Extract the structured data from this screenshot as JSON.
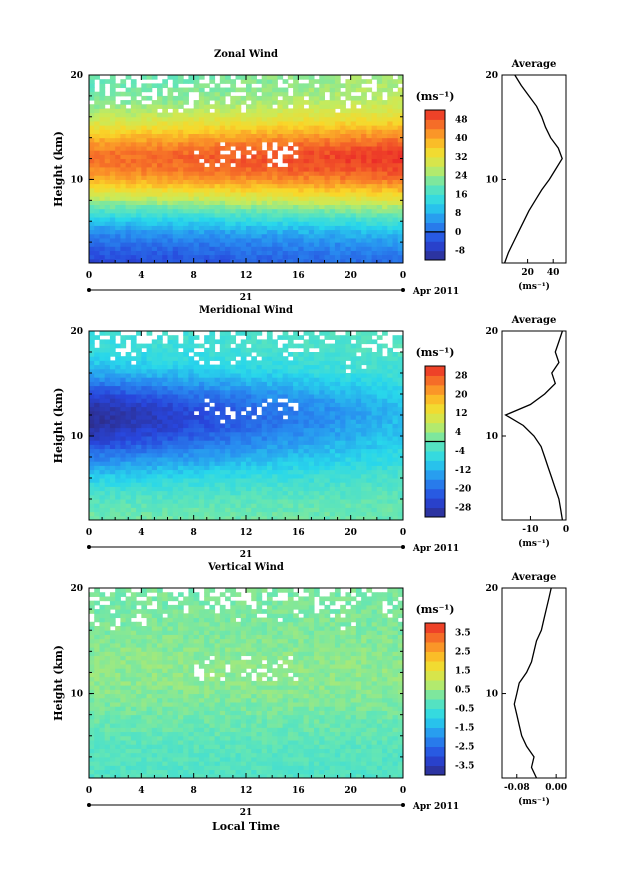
{
  "chart_data": [
    {
      "type": "heatmap",
      "title": "Zonal Wind",
      "ylabel": "Height (km)",
      "xlabel": "",
      "x_ticks": [
        "0",
        "4",
        "8",
        "12",
        "16",
        "20",
        "0"
      ],
      "y_ticks": [
        "10",
        "20"
      ],
      "xlim": [
        0,
        24
      ],
      "ylim": [
        2,
        20
      ],
      "day_label": "21",
      "date_label": "Apr 2011",
      "colorbar": {
        "unit_label": "(ms⁻¹)",
        "ticks": [
          "48",
          "40",
          "32",
          "24",
          "16",
          "8",
          "0",
          "-8"
        ],
        "min": -12,
        "max": 52,
        "zero_line": 0
      },
      "field": {
        "core_height_km": 12,
        "core_peak": 48,
        "surface_value": -4,
        "top_value": 22
      },
      "average_profile": {
        "title": "Average",
        "x_ticks": [
          "20",
          "40"
        ],
        "x_unit": "(ms⁻¹)",
        "xlim": [
          0,
          50
        ],
        "height_km": [
          2,
          3,
          4,
          5,
          6,
          7,
          8,
          9,
          10,
          11,
          12,
          13,
          14,
          15,
          16,
          17,
          18,
          19,
          20
        ],
        "values": [
          2,
          5,
          9,
          13,
          17,
          21,
          26,
          31,
          37,
          42,
          47,
          44,
          38,
          34,
          31,
          27,
          21,
          15,
          10
        ]
      }
    },
    {
      "type": "heatmap",
      "title": "Meridional Wind",
      "ylabel": "Height (km)",
      "xlabel": "",
      "x_ticks": [
        "0",
        "4",
        "8",
        "12",
        "16",
        "20",
        "0"
      ],
      "y_ticks": [
        "10",
        "20"
      ],
      "xlim": [
        0,
        24
      ],
      "ylim": [
        2,
        20
      ],
      "day_label": "21",
      "date_label": "Apr 2011",
      "colorbar": {
        "unit_label": "(ms⁻¹)",
        "ticks": [
          "28",
          "20",
          "12",
          "4",
          "-4",
          "-12",
          "-20",
          "-28"
        ],
        "min": -32,
        "max": 32,
        "zero_line": 0
      },
      "field": {
        "core_height_km": 12,
        "core_peak": -26,
        "surface_value": 2,
        "top_value": -4
      },
      "average_profile": {
        "title": "Average",
        "x_ticks": [
          "-10",
          "0"
        ],
        "x_unit": "(ms⁻¹)",
        "xlim": [
          -18,
          0
        ],
        "height_km": [
          2,
          3,
          4,
          5,
          6,
          7,
          8,
          9,
          10,
          11,
          12,
          13,
          14,
          15,
          16,
          17,
          18,
          19,
          20
        ],
        "values": [
          -1,
          -1.5,
          -2,
          -3,
          -4,
          -5,
          -6,
          -7,
          -9,
          -12,
          -17,
          -10,
          -6,
          -3,
          -4,
          -2,
          -3,
          -2,
          -1
        ]
      }
    },
    {
      "type": "heatmap",
      "title": "Vertical Wind",
      "ylabel": "Height (km)",
      "xlabel": "Local Time",
      "x_ticks": [
        "0",
        "4",
        "8",
        "12",
        "16",
        "20",
        "0"
      ],
      "y_ticks": [
        "10",
        "20"
      ],
      "xlim": [
        0,
        24
      ],
      "ylim": [
        2,
        20
      ],
      "day_label": "21",
      "date_label": "Apr 2011",
      "colorbar": {
        "unit_label": "(ms⁻¹)",
        "ticks": [
          "3.5",
          "2.5",
          "1.5",
          "0.5",
          "-0.5",
          "-1.5",
          "-2.5",
          "-3.5"
        ],
        "min": -4,
        "max": 4,
        "zero_line": null
      },
      "field": {
        "core_height_km": 12,
        "core_peak": 0.4,
        "surface_value": -0.3,
        "top_value": 0.2
      },
      "average_profile": {
        "title": "Average",
        "x_ticks": [
          "-0.08",
          "0.00"
        ],
        "x_unit": "(ms⁻¹)",
        "xlim": [
          -0.11,
          0.02
        ],
        "height_km": [
          2,
          3,
          4,
          5,
          6,
          7,
          8,
          9,
          10,
          11,
          12,
          13,
          14,
          15,
          16,
          17,
          18,
          19,
          20
        ],
        "values": [
          -0.04,
          -0.05,
          -0.045,
          -0.06,
          -0.07,
          -0.075,
          -0.08,
          -0.085,
          -0.08,
          -0.075,
          -0.06,
          -0.05,
          -0.045,
          -0.04,
          -0.03,
          -0.025,
          -0.02,
          -0.015,
          -0.01
        ]
      }
    }
  ]
}
